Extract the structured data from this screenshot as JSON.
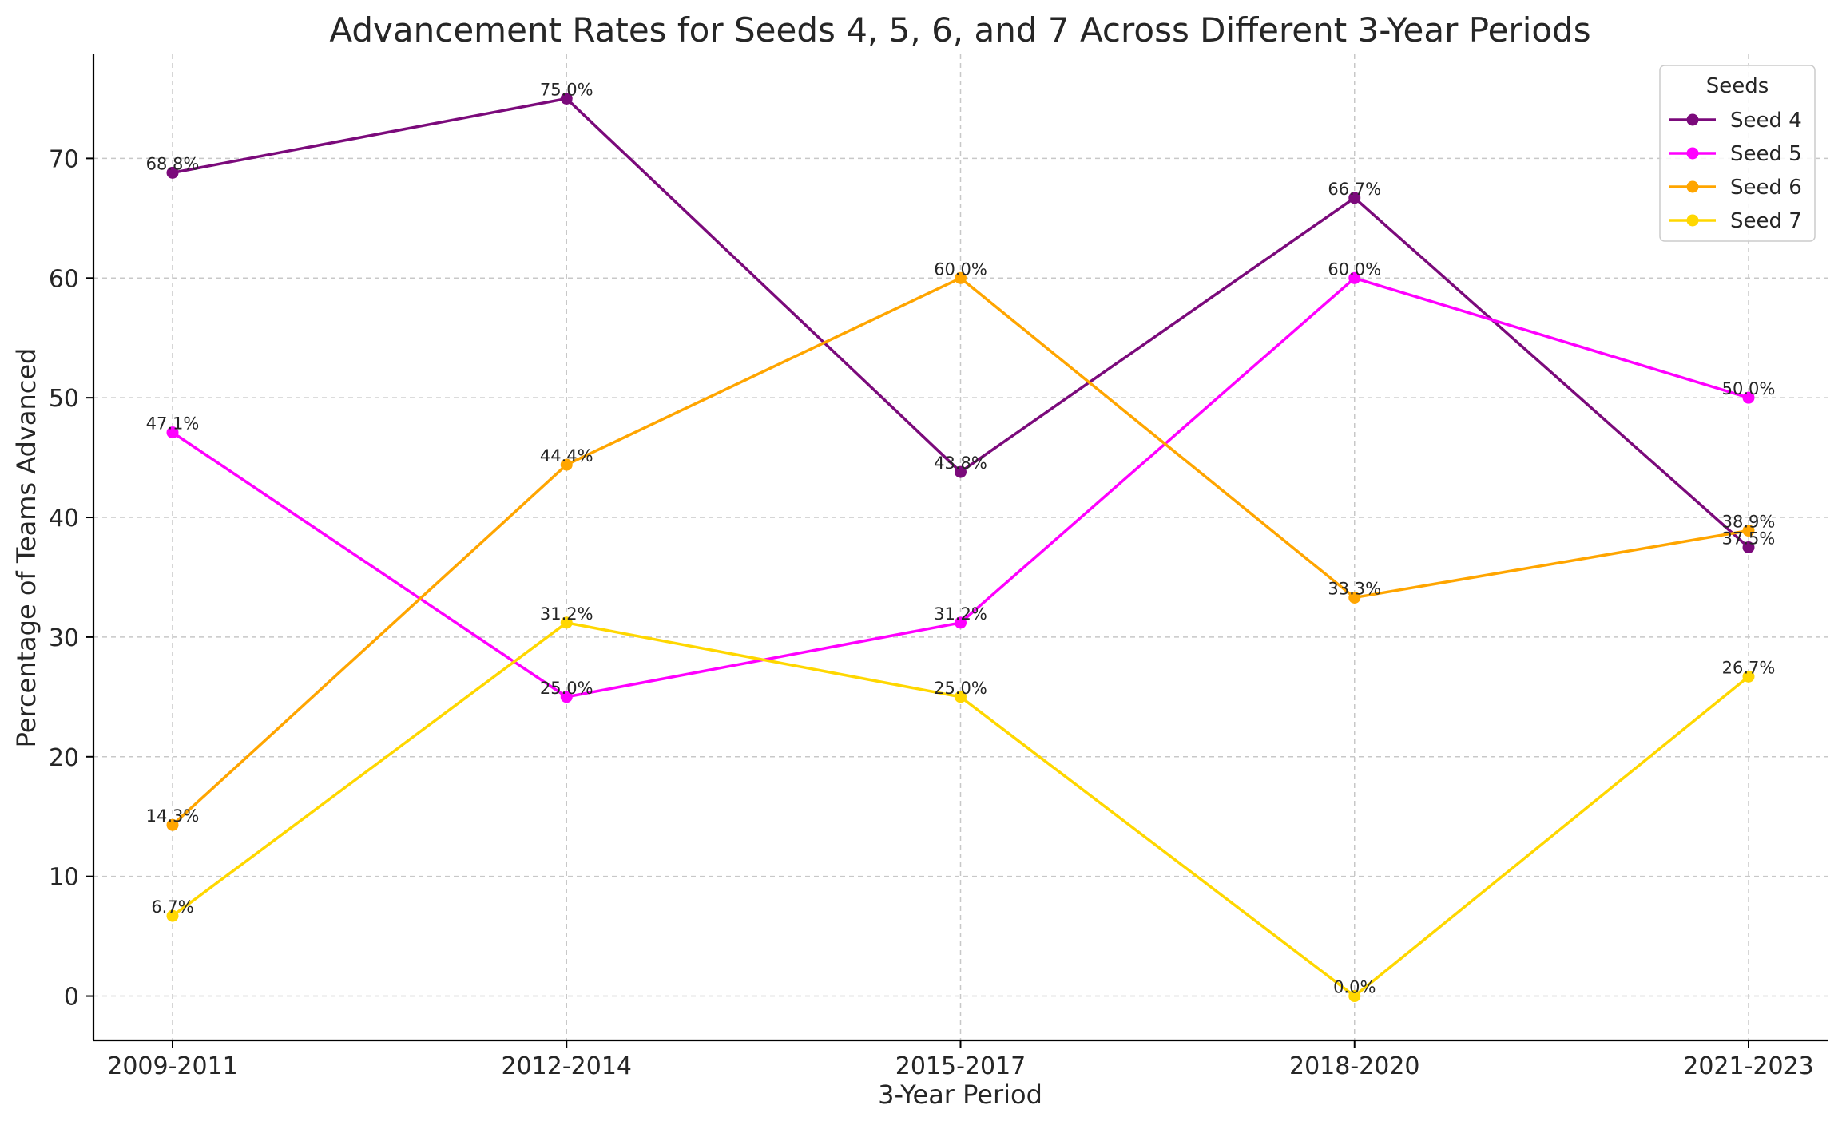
{
  "chart_data": {
    "type": "line",
    "title": "Advancement Rates for Seeds 4, 5, 6, and 7 Across Different 3-Year Periods",
    "xlabel": "3-Year Period",
    "ylabel": "Percentage of Teams Advanced",
    "categories": [
      "2009-2011",
      "2012-2014",
      "2015-2017",
      "2018-2020",
      "2021-2023"
    ],
    "ylim": [
      -3.7,
      78.7
    ],
    "yticks": [
      0,
      10,
      20,
      30,
      40,
      50,
      60,
      70
    ],
    "grid": true,
    "legend": {
      "title": "Seeds",
      "placement": "top-right"
    },
    "series": [
      {
        "name": "Seed 4",
        "color": "#7b0a7b",
        "values": [
          68.8,
          75.0,
          43.8,
          66.7,
          37.5
        ],
        "labels": [
          "68.8%",
          "75.0%",
          "43.8%",
          "66.7%",
          "37.5%"
        ]
      },
      {
        "name": "Seed 5",
        "color": "#ff00ff",
        "values": [
          47.1,
          25.0,
          31.2,
          60.0,
          50.0
        ],
        "labels": [
          "47.1%",
          "25.0%",
          "31.2%",
          "60.0%",
          "50.0%"
        ]
      },
      {
        "name": "Seed 6",
        "color": "#ffa500",
        "values": [
          14.3,
          44.4,
          60.0,
          33.3,
          38.9
        ],
        "labels": [
          "14.3%",
          "44.4%",
          "60.0%",
          "33.3%",
          "38.9%"
        ]
      },
      {
        "name": "Seed 7",
        "color": "#ffd700",
        "values": [
          6.7,
          31.2,
          25.0,
          0.0,
          26.7
        ],
        "labels": [
          "6.7%",
          "31.2%",
          "25.0%",
          "0.0%",
          "26.7%"
        ]
      }
    ]
  }
}
